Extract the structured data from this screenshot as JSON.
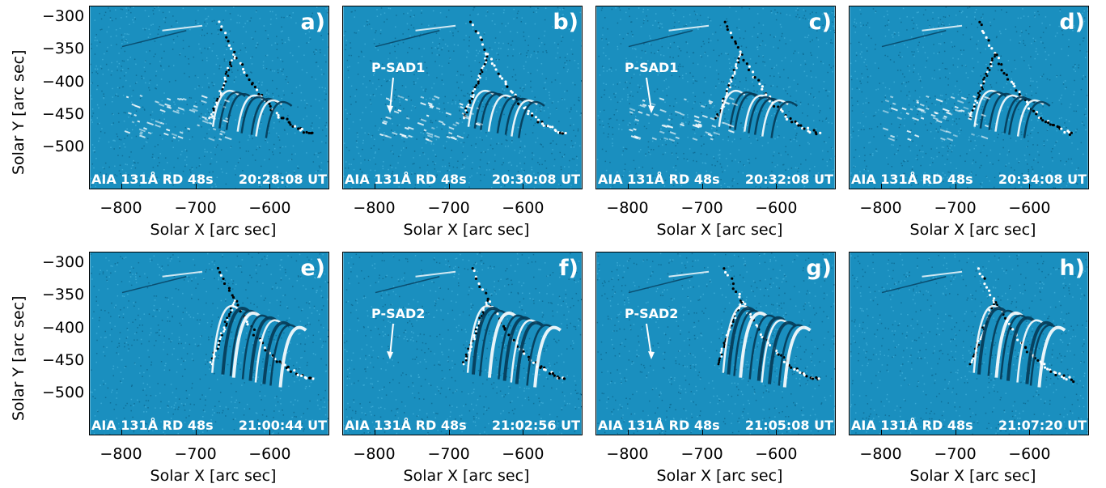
{
  "figure": {
    "xlabel": "Solar X [arc sec]",
    "ylabel": "Solar Y [arc sec]",
    "xticks": [
      "−800",
      "−700",
      "−600"
    ],
    "yticks": [
      "−300",
      "−350",
      "−400",
      "−450",
      "−500"
    ],
    "colors": {
      "background": "#1a8fbf",
      "dark": "#053a55",
      "light": "#ffffff"
    },
    "panels": [
      {
        "letter": "a)",
        "instrument": "AIA 131Å RD 48s",
        "time": "20:28:08 UT",
        "annotation": ""
      },
      {
        "letter": "b)",
        "instrument": "AIA 131Å RD 48s",
        "time": "20:30:08 UT",
        "annotation": "P-SAD1"
      },
      {
        "letter": "c)",
        "instrument": "AIA 131Å RD 48s",
        "time": "20:32:08 UT",
        "annotation": "P-SAD1"
      },
      {
        "letter": "d)",
        "instrument": "AIA 131Å RD 48s",
        "time": "20:34:08 UT",
        "annotation": ""
      },
      {
        "letter": "e)",
        "instrument": "AIA 131Å RD 48s",
        "time": "21:00:44 UT",
        "annotation": ""
      },
      {
        "letter": "f)",
        "instrument": "AIA 131Å RD 48s",
        "time": "21:02:56 UT",
        "annotation": "P-SAD2"
      },
      {
        "letter": "g)",
        "instrument": "AIA 131Å RD 48s",
        "time": "21:05:08 UT",
        "annotation": "P-SAD2"
      },
      {
        "letter": "h)",
        "instrument": "AIA 131Å RD 48s",
        "time": "21:07:20 UT",
        "annotation": ""
      }
    ]
  }
}
